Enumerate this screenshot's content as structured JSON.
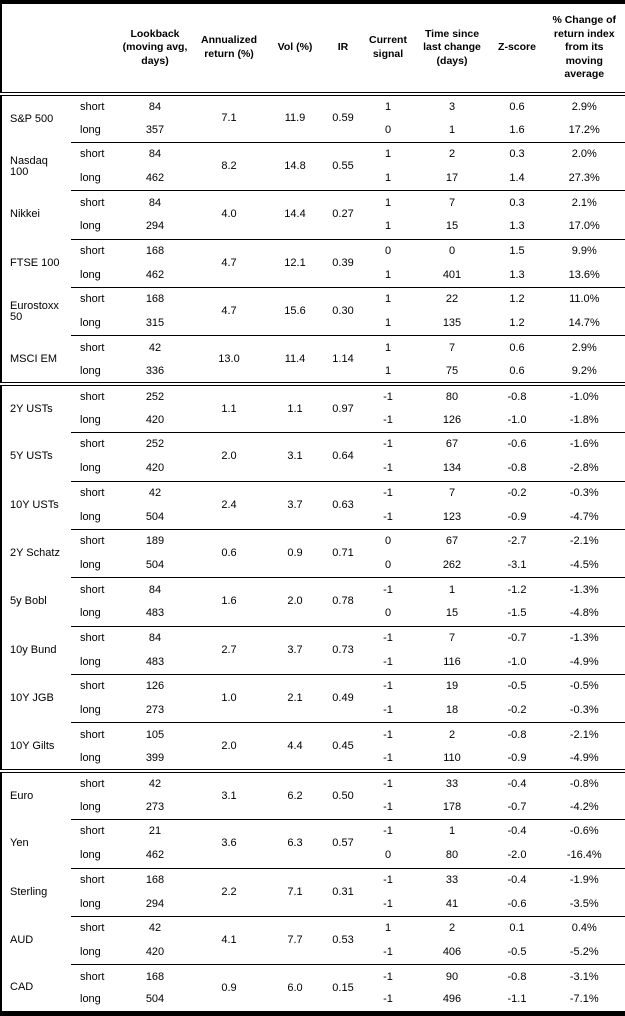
{
  "table": {
    "column_headers": [
      "",
      "",
      "Lookback (moving avg, days)",
      "Annualized return (%)",
      "Vol (%)",
      "IR",
      "Current signal",
      "Time since last change (days)",
      "Z-score",
      "% Change of return index from its moving average"
    ],
    "horizon_labels": {
      "short": "short",
      "long": "long"
    },
    "instruments": [
      {
        "name": "S&P 500",
        "section_start": false,
        "annualized_return": "7.1",
        "vol": "11.9",
        "ir": "0.59",
        "short": {
          "lookback": "84",
          "signal": "1",
          "time_since_change": "3",
          "z_score": "0.6",
          "pct_change": "2.9%"
        },
        "long": {
          "lookback": "357",
          "signal": "0",
          "time_since_change": "1",
          "z_score": "1.6",
          "pct_change": "17.2%"
        }
      },
      {
        "name": "Nasdaq 100",
        "section_start": false,
        "annualized_return": "8.2",
        "vol": "14.8",
        "ir": "0.55",
        "short": {
          "lookback": "84",
          "signal": "1",
          "time_since_change": "2",
          "z_score": "0.3",
          "pct_change": "2.0%"
        },
        "long": {
          "lookback": "462",
          "signal": "1",
          "time_since_change": "17",
          "z_score": "1.4",
          "pct_change": "27.3%"
        }
      },
      {
        "name": "Nikkei",
        "section_start": false,
        "annualized_return": "4.0",
        "vol": "14.4",
        "ir": "0.27",
        "short": {
          "lookback": "84",
          "signal": "1",
          "time_since_change": "7",
          "z_score": "0.3",
          "pct_change": "2.1%"
        },
        "long": {
          "lookback": "294",
          "signal": "1",
          "time_since_change": "15",
          "z_score": "1.3",
          "pct_change": "17.0%"
        }
      },
      {
        "name": "FTSE 100",
        "section_start": false,
        "annualized_return": "4.7",
        "vol": "12.1",
        "ir": "0.39",
        "short": {
          "lookback": "168",
          "signal": "0",
          "time_since_change": "0",
          "z_score": "1.5",
          "pct_change": "9.9%"
        },
        "long": {
          "lookback": "462",
          "signal": "1",
          "time_since_change": "401",
          "z_score": "1.3",
          "pct_change": "13.6%"
        }
      },
      {
        "name": "Eurostoxx 50",
        "section_start": false,
        "annualized_return": "4.7",
        "vol": "15.6",
        "ir": "0.30",
        "short": {
          "lookback": "168",
          "signal": "1",
          "time_since_change": "22",
          "z_score": "1.2",
          "pct_change": "11.0%"
        },
        "long": {
          "lookback": "315",
          "signal": "1",
          "time_since_change": "135",
          "z_score": "1.2",
          "pct_change": "14.7%"
        }
      },
      {
        "name": "MSCI EM",
        "section_start": false,
        "annualized_return": "13.0",
        "vol": "11.4",
        "ir": "1.14",
        "short": {
          "lookback": "42",
          "signal": "1",
          "time_since_change": "7",
          "z_score": "0.6",
          "pct_change": "2.9%"
        },
        "long": {
          "lookback": "336",
          "signal": "1",
          "time_since_change": "75",
          "z_score": "0.6",
          "pct_change": "9.2%"
        }
      },
      {
        "name": "2Y USTs",
        "section_start": true,
        "annualized_return": "1.1",
        "vol": "1.1",
        "ir": "0.97",
        "short": {
          "lookback": "252",
          "signal": "-1",
          "time_since_change": "80",
          "z_score": "-0.8",
          "pct_change": "-1.0%"
        },
        "long": {
          "lookback": "420",
          "signal": "-1",
          "time_since_change": "126",
          "z_score": "-1.0",
          "pct_change": "-1.8%"
        }
      },
      {
        "name": "5Y USTs",
        "section_start": false,
        "annualized_return": "2.0",
        "vol": "3.1",
        "ir": "0.64",
        "short": {
          "lookback": "252",
          "signal": "-1",
          "time_since_change": "67",
          "z_score": "-0.6",
          "pct_change": "-1.6%"
        },
        "long": {
          "lookback": "420",
          "signal": "-1",
          "time_since_change": "134",
          "z_score": "-0.8",
          "pct_change": "-2.8%"
        }
      },
      {
        "name": "10Y USTs",
        "section_start": false,
        "annualized_return": "2.4",
        "vol": "3.7",
        "ir": "0.63",
        "short": {
          "lookback": "42",
          "signal": "-1",
          "time_since_change": "7",
          "z_score": "-0.2",
          "pct_change": "-0.3%"
        },
        "long": {
          "lookback": "504",
          "signal": "-1",
          "time_since_change": "123",
          "z_score": "-0.9",
          "pct_change": "-4.7%"
        }
      },
      {
        "name": "2Y Schatz",
        "section_start": false,
        "annualized_return": "0.6",
        "vol": "0.9",
        "ir": "0.71",
        "short": {
          "lookback": "189",
          "signal": "0",
          "time_since_change": "67",
          "z_score": "-2.7",
          "pct_change": "-2.1%"
        },
        "long": {
          "lookback": "504",
          "signal": "0",
          "time_since_change": "262",
          "z_score": "-3.1",
          "pct_change": "-4.5%"
        }
      },
      {
        "name": "5y Bobl",
        "section_start": false,
        "annualized_return": "1.6",
        "vol": "2.0",
        "ir": "0.78",
        "short": {
          "lookback": "84",
          "signal": "-1",
          "time_since_change": "1",
          "z_score": "-1.2",
          "pct_change": "-1.3%"
        },
        "long": {
          "lookback": "483",
          "signal": "0",
          "time_since_change": "15",
          "z_score": "-1.5",
          "pct_change": "-4.8%"
        }
      },
      {
        "name": "10y Bund",
        "section_start": false,
        "annualized_return": "2.7",
        "vol": "3.7",
        "ir": "0.73",
        "short": {
          "lookback": "84",
          "signal": "-1",
          "time_since_change": "7",
          "z_score": "-0.7",
          "pct_change": "-1.3%"
        },
        "long": {
          "lookback": "483",
          "signal": "-1",
          "time_since_change": "116",
          "z_score": "-1.0",
          "pct_change": "-4.9%"
        }
      },
      {
        "name": "10Y JGB",
        "section_start": false,
        "annualized_return": "1.0",
        "vol": "2.1",
        "ir": "0.49",
        "short": {
          "lookback": "126",
          "signal": "-1",
          "time_since_change": "19",
          "z_score": "-0.5",
          "pct_change": "-0.5%"
        },
        "long": {
          "lookback": "273",
          "signal": "-1",
          "time_since_change": "18",
          "z_score": "-0.2",
          "pct_change": "-0.3%"
        }
      },
      {
        "name": "10Y Gilts",
        "section_start": false,
        "annualized_return": "2.0",
        "vol": "4.4",
        "ir": "0.45",
        "short": {
          "lookback": "105",
          "signal": "-1",
          "time_since_change": "2",
          "z_score": "-0.8",
          "pct_change": "-2.1%"
        },
        "long": {
          "lookback": "399",
          "signal": "-1",
          "time_since_change": "110",
          "z_score": "-0.9",
          "pct_change": "-4.9%"
        }
      },
      {
        "name": "Euro",
        "section_start": true,
        "annualized_return": "3.1",
        "vol": "6.2",
        "ir": "0.50",
        "short": {
          "lookback": "42",
          "signal": "-1",
          "time_since_change": "33",
          "z_score": "-0.4",
          "pct_change": "-0.8%"
        },
        "long": {
          "lookback": "273",
          "signal": "-1",
          "time_since_change": "178",
          "z_score": "-0.7",
          "pct_change": "-4.2%"
        }
      },
      {
        "name": "Yen",
        "section_start": false,
        "annualized_return": "3.6",
        "vol": "6.3",
        "ir": "0.57",
        "short": {
          "lookback": "21",
          "signal": "-1",
          "time_since_change": "1",
          "z_score": "-0.4",
          "pct_change": "-0.6%"
        },
        "long": {
          "lookback": "462",
          "signal": "0",
          "time_since_change": "80",
          "z_score": "-2.0",
          "pct_change": "-16.4%"
        }
      },
      {
        "name": "Sterling",
        "section_start": false,
        "annualized_return": "2.2",
        "vol": "7.1",
        "ir": "0.31",
        "short": {
          "lookback": "168",
          "signal": "-1",
          "time_since_change": "33",
          "z_score": "-0.4",
          "pct_change": "-1.9%"
        },
        "long": {
          "lookback": "294",
          "signal": "-1",
          "time_since_change": "41",
          "z_score": "-0.6",
          "pct_change": "-3.5%"
        }
      },
      {
        "name": "AUD",
        "section_start": false,
        "annualized_return": "4.1",
        "vol": "7.7",
        "ir": "0.53",
        "short": {
          "lookback": "42",
          "signal": "1",
          "time_since_change": "2",
          "z_score": "0.1",
          "pct_change": "0.4%"
        },
        "long": {
          "lookback": "420",
          "signal": "-1",
          "time_since_change": "406",
          "z_score": "-0.5",
          "pct_change": "-5.2%"
        }
      },
      {
        "name": "CAD",
        "section_start": false,
        "annualized_return": "0.9",
        "vol": "6.0",
        "ir": "0.15",
        "short": {
          "lookback": "168",
          "signal": "-1",
          "time_since_change": "90",
          "z_score": "-0.8",
          "pct_change": "-3.1%"
        },
        "long": {
          "lookback": "504",
          "signal": "-1",
          "time_since_change": "496",
          "z_score": "-1.1",
          "pct_change": "-7.1%"
        }
      }
    ]
  }
}
